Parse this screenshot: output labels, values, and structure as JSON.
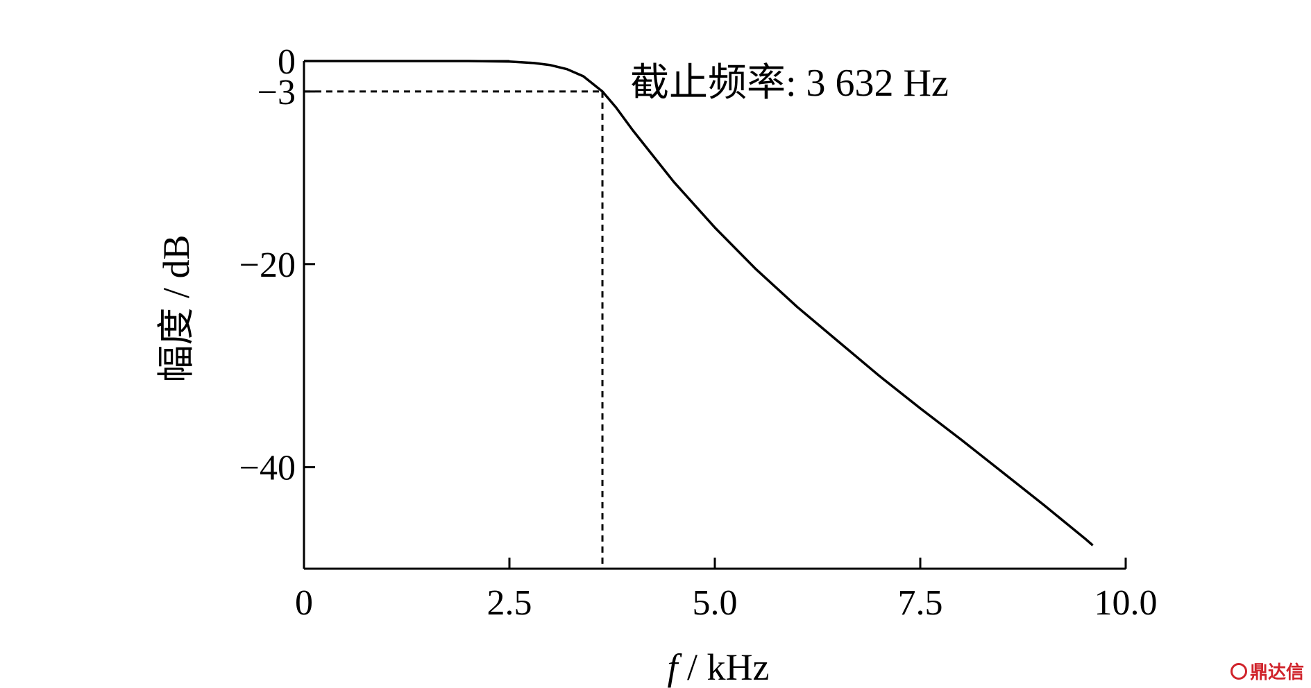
{
  "chart_data": {
    "type": "line",
    "xlabel_italic": "f",
    "xlabel_rest": " / kHz",
    "ylabel": "幅度 / dB",
    "xlim": [
      0,
      10
    ],
    "ylim": [
      -50,
      0
    ],
    "x_ticks": [
      0,
      2.5,
      5.0,
      7.5,
      10.0
    ],
    "x_tick_labels": [
      "0",
      "2.5",
      "5.0",
      "7.5",
      "10.0"
    ],
    "y_ticks": [
      0,
      -3,
      -20,
      -40
    ],
    "y_tick_labels": [
      "0",
      "−3",
      "−20",
      "−40"
    ],
    "cutoff": {
      "x": 3.632,
      "y": -3,
      "label": "截止频率: 3 632 Hz"
    },
    "series": [
      {
        "x": [
          0,
          1.0,
          2.0,
          2.5,
          2.8,
          3.0,
          3.2,
          3.4,
          3.632,
          3.8,
          4.0,
          4.5,
          5.0,
          5.5,
          6.0,
          6.5,
          7.0,
          7.5,
          8.0,
          8.5,
          9.0,
          9.5,
          9.6
        ],
        "y": [
          0,
          0,
          0,
          -0.05,
          -0.2,
          -0.4,
          -0.8,
          -1.5,
          -3.0,
          -4.6,
          -6.8,
          -11.9,
          -16.4,
          -20.5,
          -24.2,
          -27.6,
          -31.0,
          -34.2,
          -37.3,
          -40.5,
          -43.7,
          -47.0,
          -47.7
        ]
      }
    ],
    "grid": false,
    "legend": "none"
  },
  "watermark": {
    "text": "鼎达信"
  }
}
